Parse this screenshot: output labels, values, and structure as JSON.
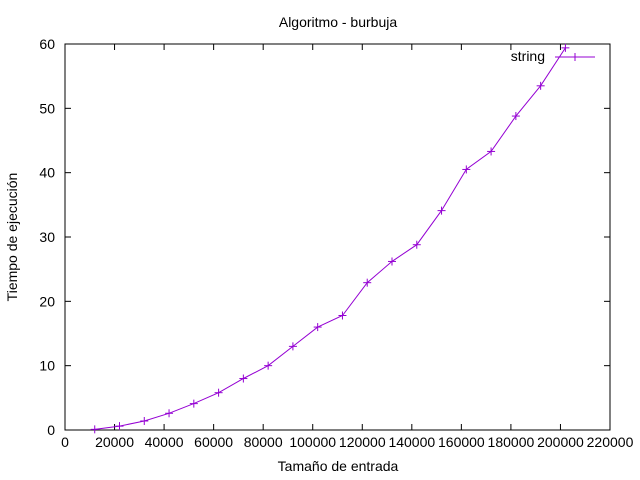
{
  "colors": {
    "series": "#9400d3",
    "axis": "#000000",
    "background": "#ffffff"
  },
  "chart_data": {
    "type": "line",
    "title": "Algoritmo - burbuja",
    "xlabel": "Tamaño de entrada",
    "ylabel": "Tiempo de ejecución",
    "xlim": [
      0,
      220000
    ],
    "ylim": [
      0,
      60
    ],
    "xticks": [
      0,
      20000,
      40000,
      60000,
      80000,
      100000,
      120000,
      140000,
      160000,
      180000,
      200000,
      220000
    ],
    "yticks": [
      0,
      10,
      20,
      30,
      40,
      50,
      60
    ],
    "grid": false,
    "legend": "top-right",
    "marker": "plus",
    "series": [
      {
        "name": "string",
        "x": [
          12000,
          22000,
          32000,
          42000,
          52000,
          62000,
          72000,
          82000,
          92000,
          102000,
          112000,
          122000,
          132000,
          142000,
          152000,
          162000,
          172000,
          182000,
          192000,
          202000
        ],
        "y": [
          0.1,
          0.6,
          1.4,
          2.6,
          4.1,
          5.8,
          8.0,
          10.0,
          13.0,
          16.0,
          17.8,
          22.9,
          26.2,
          28.8,
          34.1,
          40.5,
          43.3,
          48.8,
          53.5,
          59.4
        ]
      }
    ]
  }
}
